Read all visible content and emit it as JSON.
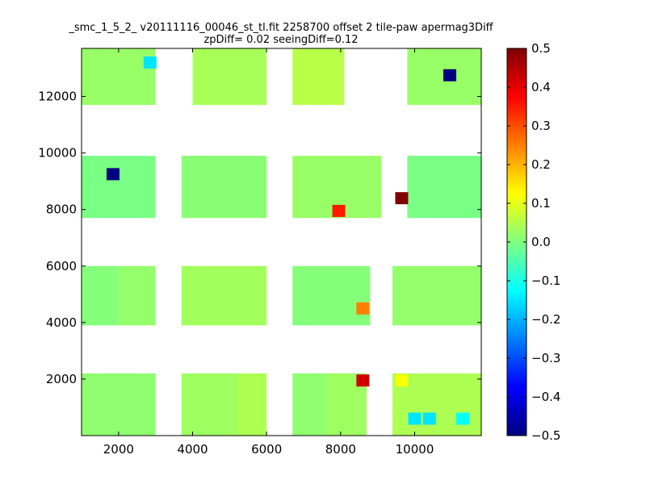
{
  "chart_data": {
    "type": "heatmap",
    "title": "_smc_1_5_2_ v20111116_00046_st_tl.fit 2258700 offset 2 tile-paw apermag3Diff",
    "subtitle": "zpDiff= 0.02 seeingDiff=0.12",
    "xlabel": "",
    "ylabel": "",
    "xlim": [
      1000,
      11800
    ],
    "ylim": [
      0,
      13700
    ],
    "xticks": [
      2000,
      4000,
      6000,
      8000,
      10000
    ],
    "xtick_labels": [
      "2000",
      "4000",
      "6000",
      "8000",
      "10000"
    ],
    "yticks": [
      2000,
      4000,
      6000,
      8000,
      10000,
      12000
    ],
    "ytick_labels": [
      "2000",
      "4000",
      "6000",
      "8000",
      "10000",
      "12000"
    ],
    "colormap": "jet",
    "clim": [
      -0.5,
      0.5
    ],
    "colorbar_ticks": [
      0.5,
      0.4,
      0.3,
      0.2,
      0.1,
      0.0,
      -0.1,
      -0.2,
      -0.3,
      -0.4,
      -0.5
    ],
    "colorbar_tick_labels": [
      "0.5",
      "0.4",
      "0.3",
      "0.2",
      "0.1",
      "0.0",
      "−0.1",
      "−0.2",
      "−0.3",
      "−0.4",
      "−0.5"
    ],
    "grid": false,
    "bands": [
      {
        "y_range": [
          0,
          2200
        ],
        "x_ranges": [
          [
            1000,
            3000
          ],
          [
            3700,
            5200
          ],
          [
            5200,
            6000
          ],
          [
            6700,
            7600
          ],
          [
            7600,
            8700
          ],
          [
            9400,
            11800
          ]
        ],
        "base_value": 0.03
      },
      {
        "y_range": [
          3900,
          6000
        ],
        "x_ranges": [
          [
            1000,
            2000
          ],
          [
            2000,
            3000
          ],
          [
            3700,
            6000
          ],
          [
            6700,
            8800
          ],
          [
            9400,
            11800
          ]
        ],
        "base_value": 0.02
      },
      {
        "y_range": [
          7700,
          9900
        ],
        "x_ranges": [
          [
            1000,
            3000
          ],
          [
            3700,
            6000
          ],
          [
            6700,
            9100
          ],
          [
            9800,
            11800
          ]
        ],
        "base_value": 0.01
      },
      {
        "y_range": [
          11700,
          13700
        ],
        "x_ranges": [
          [
            1000,
            3000
          ],
          [
            4000,
            6000
          ],
          [
            6700,
            8100
          ],
          [
            9800,
            11800
          ]
        ],
        "base_value": 0.04
      }
    ],
    "notable_cells": [
      {
        "x": 2850,
        "y": 13200,
        "value": -0.15
      },
      {
        "x": 10950,
        "y": 12750,
        "value": -0.5
      },
      {
        "x": 1850,
        "y": 9250,
        "value": -0.5
      },
      {
        "x": 9650,
        "y": 8400,
        "value": 0.5
      },
      {
        "x": 7950,
        "y": 7950,
        "value": 0.35
      },
      {
        "x": 8600,
        "y": 4500,
        "value": 0.25
      },
      {
        "x": 8600,
        "y": 1950,
        "value": 0.42
      },
      {
        "x": 9650,
        "y": 1950,
        "value": 0.12
      },
      {
        "x": 10000,
        "y": 600,
        "value": -0.15
      },
      {
        "x": 10400,
        "y": 600,
        "value": -0.15
      },
      {
        "x": 11300,
        "y": 600,
        "value": -0.12
      }
    ]
  }
}
